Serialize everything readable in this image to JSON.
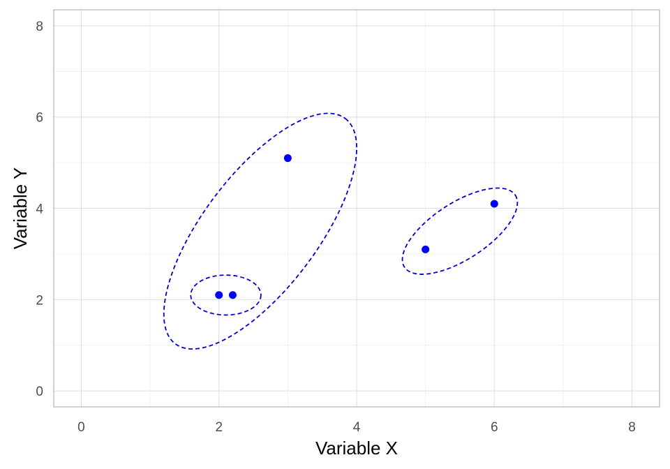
{
  "chart_data": {
    "type": "scatter",
    "title": "",
    "xlabel": "Variable X",
    "ylabel": "Variable Y",
    "xlim": [
      -0.4,
      8.4
    ],
    "ylim": [
      -0.35,
      8.35
    ],
    "x_ticks": [
      0,
      2,
      4,
      6,
      8
    ],
    "y_ticks": [
      0,
      2,
      4,
      6,
      8
    ],
    "grid": true,
    "legend": "none",
    "series": [
      {
        "points": [
          {
            "x": 2.0,
            "y": 2.1
          },
          {
            "x": 2.2,
            "y": 2.1
          },
          {
            "x": 3.0,
            "y": 5.1
          },
          {
            "x": 5.0,
            "y": 3.1
          },
          {
            "x": 6.0,
            "y": 4.1
          }
        ],
        "color": "#0000ff"
      }
    ],
    "annotations": [
      {
        "shape": "dashed-ellipse",
        "cx": 2.1,
        "cy": 2.1,
        "rx": 0.51,
        "ry": 0.29,
        "angle_deg": 0
      },
      {
        "shape": "dashed-ellipse",
        "cx": 2.6,
        "cy": 3.5,
        "rx": 2.05,
        "ry": 0.83,
        "angle_deg": 53
      },
      {
        "shape": "dashed-ellipse",
        "cx": 5.5,
        "cy": 3.5,
        "rx": 0.96,
        "ry": 0.41,
        "angle_deg": 33
      }
    ],
    "annotation_color": "#0000cc"
  }
}
